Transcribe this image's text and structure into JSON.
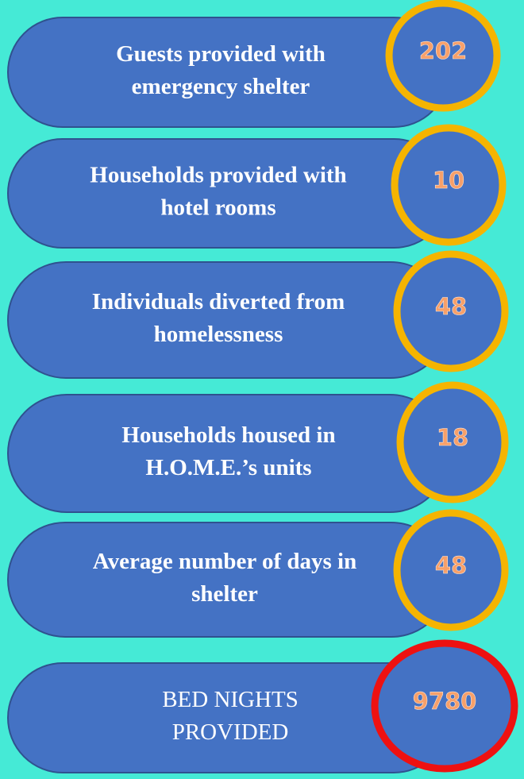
{
  "items": [
    {
      "label_lines": [
        "Guests provided with",
        "emergency shelter"
      ],
      "value": 202
    },
    {
      "label_lines": [
        "Households provided with",
        "hotel rooms"
      ],
      "value": 10
    },
    {
      "label_lines": [
        "Individuals diverted from",
        "homelessness"
      ],
      "value": 48
    },
    {
      "label_lines": [
        "Households housed in",
        "H.O.M.E.’s units"
      ],
      "value": 18
    },
    {
      "label_lines": [
        "Average number of days in",
        "shelter"
      ],
      "value": 48
    },
    {
      "label_lines": [
        "BED NIGHTS",
        "PROVIDED"
      ],
      "value": 9780
    }
  ]
}
